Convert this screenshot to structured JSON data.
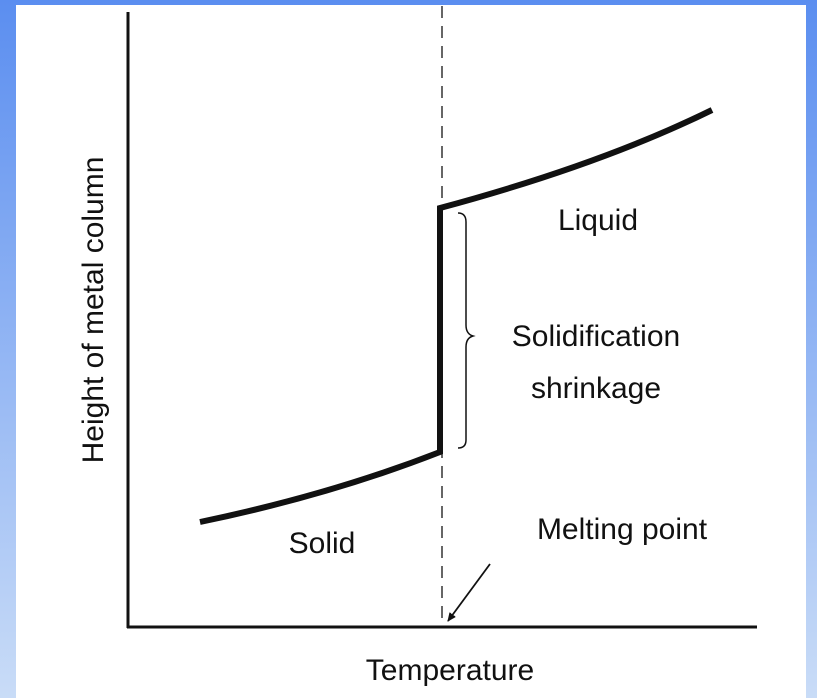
{
  "diagram": {
    "y_axis_label": "Height of metal column",
    "x_axis_label": "Temperature",
    "regions": {
      "liquid": "Liquid",
      "solid": "Solid"
    },
    "annotations": {
      "shrinkage": [
        "Solidification",
        "shrinkage"
      ],
      "melting_point": "Melting point"
    }
  }
}
